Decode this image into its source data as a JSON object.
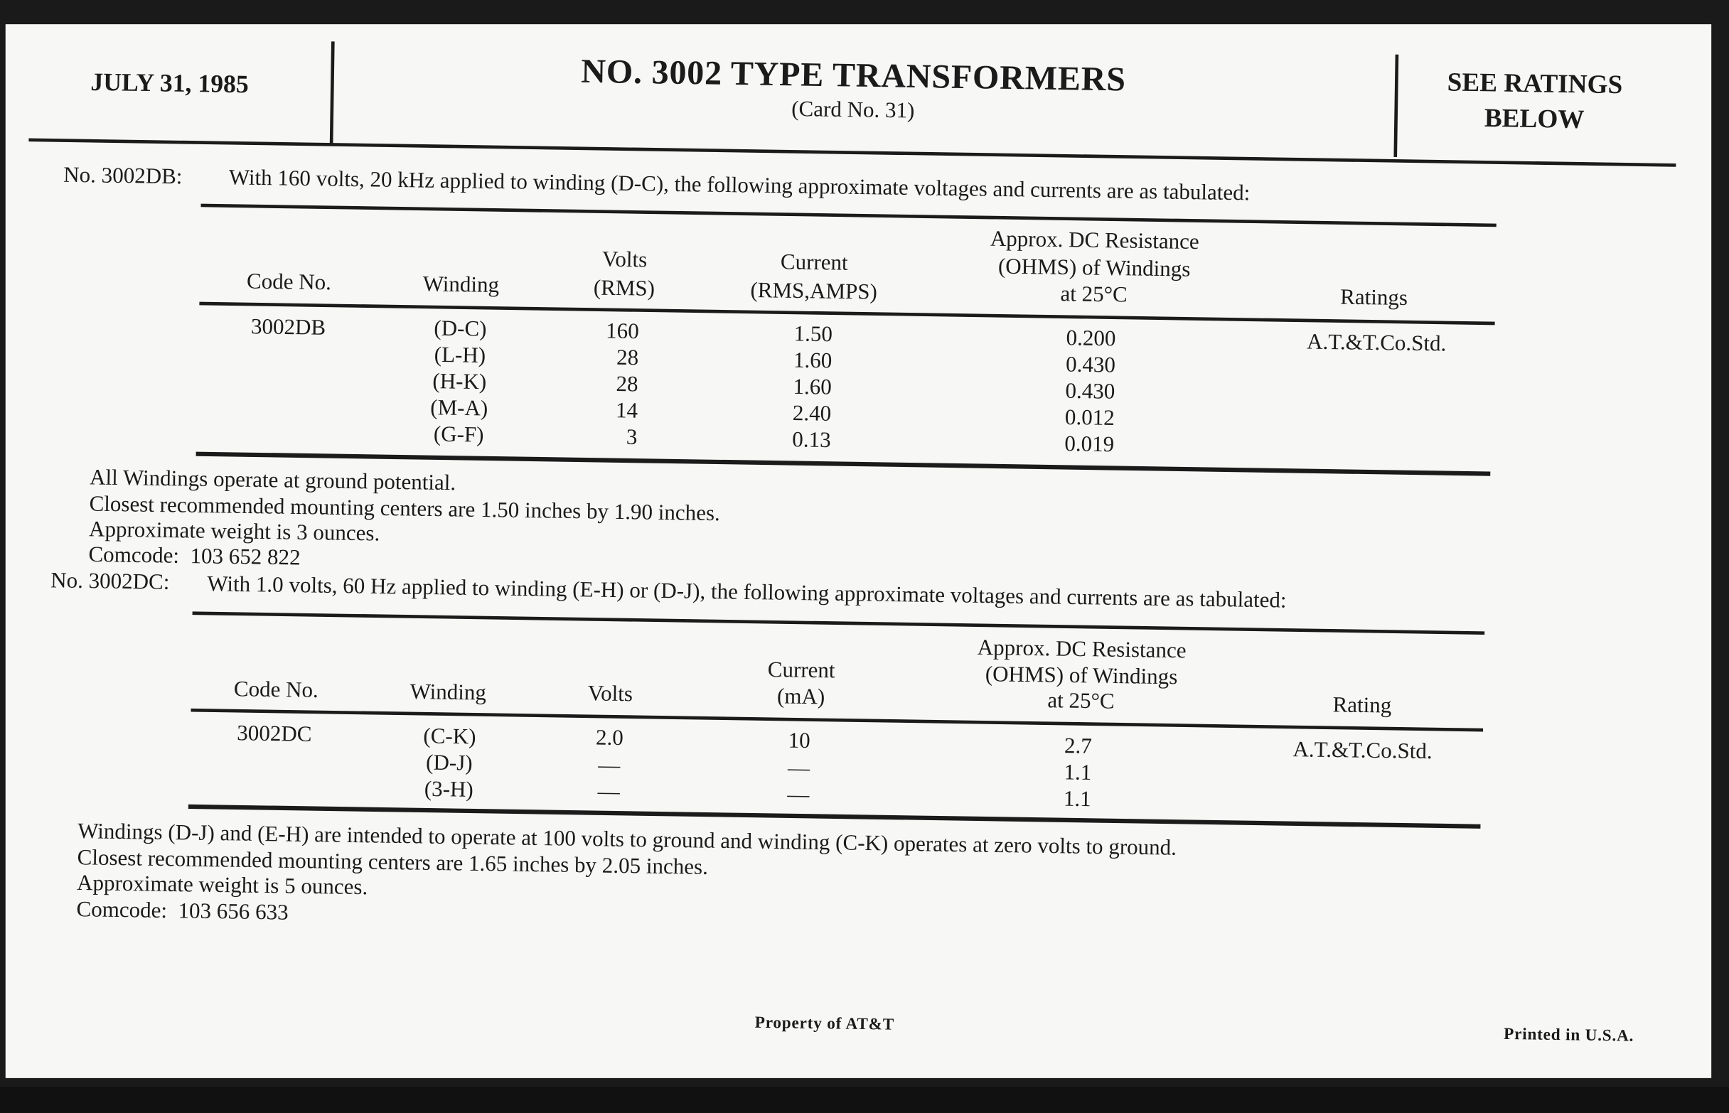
{
  "header": {
    "date": "JULY 31, 1985",
    "title": "NO. 3002 TYPE TRANSFORMERS",
    "card": "(Card No. 31)",
    "ratings_line1": "SEE RATINGS",
    "ratings_line2": "BELOW"
  },
  "db": {
    "label": "No. 3002DB:",
    "intro": "With 160 volts, 20 kHz applied to winding (D-C), the following approximate voltages and currents are as tabulated:",
    "headers": {
      "code": "Code No.",
      "winding": "Winding",
      "volts1": "Volts",
      "volts2": "(RMS)",
      "current1": "Current",
      "current2": "(RMS,AMPS)",
      "res1": "Approx. DC Resistance",
      "res2": "(OHMS) of Windings",
      "res3": "at 25°C",
      "ratings": "Ratings"
    },
    "code": "3002DB",
    "rating": "A.T.&T.Co.Std.",
    "rows": [
      {
        "winding": "(D-C)",
        "volts": "160",
        "current": "1.50",
        "resistance": "0.200"
      },
      {
        "winding": "(L-H)",
        "volts": "28",
        "current": "1.60",
        "resistance": "0.430"
      },
      {
        "winding": "(H-K)",
        "volts": "28",
        "current": "1.60",
        "resistance": "0.430"
      },
      {
        "winding": "(M-A)",
        "volts": "14",
        "current": "2.40",
        "resistance": "0.012"
      },
      {
        "winding": "(G-F)",
        "volts": "3",
        "current": "0.13",
        "resistance": "0.019"
      }
    ],
    "notes": [
      "All Windings operate at ground potential.",
      "Closest recommended mounting centers are 1.50 inches by 1.90 inches.",
      "Approximate weight is 3 ounces.",
      "Comcode:  103 652 822"
    ]
  },
  "dc": {
    "label": "No. 3002DC:",
    "intro": "With 1.0 volts, 60 Hz applied to winding (E-H) or (D-J), the following approximate voltages and currents are as tabulated:",
    "headers": {
      "code": "Code No.",
      "winding": "Winding",
      "volts": "Volts",
      "current1": "Current",
      "current2": "(mA)",
      "res1": "Approx. DC Resistance",
      "res2": "(OHMS) of Windings",
      "res3": "at 25°C",
      "rating": "Rating"
    },
    "code": "3002DC",
    "rating": "A.T.&T.Co.Std.",
    "rows": [
      {
        "winding": "(C-K)",
        "volts": "2.0",
        "current": "10",
        "resistance": "2.7"
      },
      {
        "winding": "(D-J)",
        "volts": "—",
        "current": "—",
        "resistance": "1.1"
      },
      {
        "winding": "(3-H)",
        "volts": "—",
        "current": "—",
        "resistance": "1.1"
      }
    ],
    "notes": [
      "Windings (D-J) and (E-H) are intended to operate at 100 volts to ground and winding (C-K) operates at zero volts to ground.",
      "Closest recommended mounting centers are 1.65 inches by 2.05 inches.",
      "Approximate weight is 5 ounces.",
      "Comcode:  103 656 633"
    ]
  },
  "footer": {
    "property": "Property of AT&T",
    "printed": "Printed in U.S.A."
  }
}
